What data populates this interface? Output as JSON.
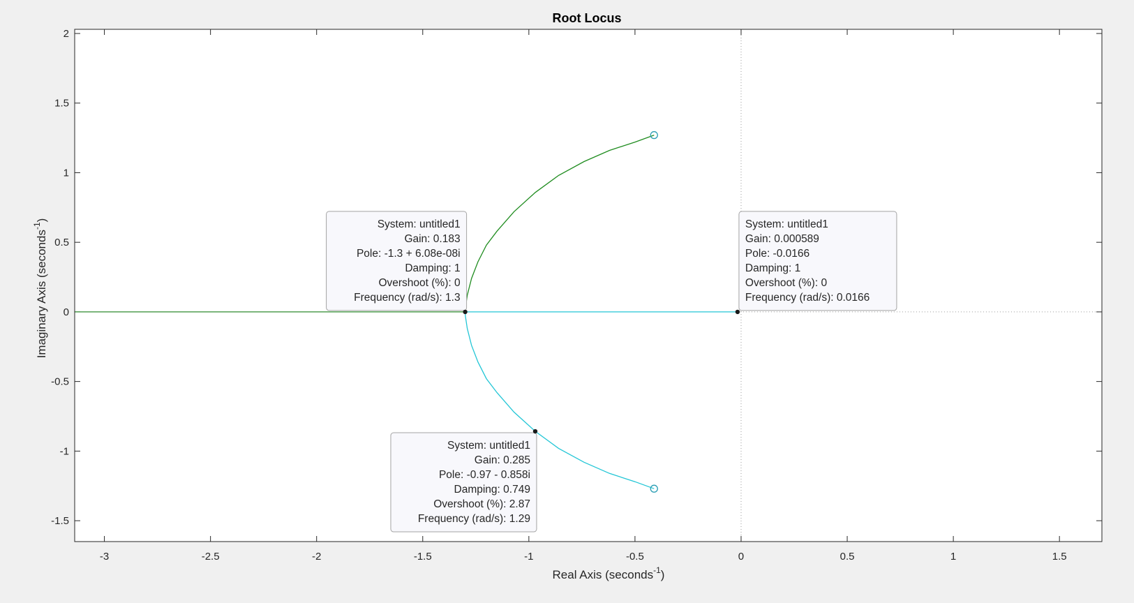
{
  "chart_data": {
    "type": "line",
    "title": "Root Locus",
    "xlabel": {
      "text": "Real Axis (seconds",
      "sup": "-1",
      "close": ")"
    },
    "ylabel": {
      "text": "Imaginary Axis (seconds",
      "sup": "-1",
      "close": ")"
    },
    "xlim": [
      -3.14,
      1.7
    ],
    "ylim": [
      -1.65,
      2.03
    ],
    "xticks": [
      -3,
      -2.5,
      -2,
      -1.5,
      -1,
      -0.5,
      0,
      0.5,
      1,
      1.5
    ],
    "yticks": [
      -1.5,
      -1,
      -0.5,
      0,
      0.5,
      1,
      1.5,
      2
    ],
    "grid": false,
    "colors": {
      "upper_branch": "#1f8c1f",
      "lower_branch": "#23c6d6",
      "zero_marker": "#2a9db3",
      "real_axis_branch": "#2e8b2e"
    },
    "series": [
      {
        "branch": "upper",
        "x": [
          -1.3,
          -1.299,
          -1.29,
          -1.27,
          -1.24,
          -1.2,
          -1.15,
          -1.07,
          -0.97,
          -0.86,
          -0.74,
          -0.62,
          -0.5,
          -0.41
        ],
        "y": [
          0.0,
          0.03,
          0.12,
          0.24,
          0.36,
          0.48,
          0.58,
          0.72,
          0.858,
          0.98,
          1.08,
          1.16,
          1.22,
          1.27
        ]
      },
      {
        "branch": "lower",
        "x": [
          -1.3,
          -1.299,
          -1.29,
          -1.27,
          -1.24,
          -1.2,
          -1.15,
          -1.07,
          -0.97,
          -0.86,
          -0.74,
          -0.62,
          -0.5,
          -0.41
        ],
        "y": [
          0.0,
          -0.03,
          -0.12,
          -0.24,
          -0.36,
          -0.48,
          -0.58,
          -0.72,
          -0.858,
          -0.98,
          -1.08,
          -1.16,
          -1.22,
          -1.27
        ]
      },
      {
        "branch": "real-left",
        "x": [
          -3.14,
          -1.3
        ],
        "y": [
          0,
          0
        ]
      },
      {
        "branch": "real-right",
        "x": [
          -1.3,
          -0.0166
        ],
        "y": [
          0,
          0
        ]
      }
    ],
    "zeros": [
      {
        "x": -0.41,
        "y": 1.27
      },
      {
        "x": -0.41,
        "y": -1.27
      }
    ],
    "datatips": [
      {
        "point": {
          "x": -1.3,
          "y": 0.0
        },
        "align": "right",
        "lines": [
          "System: untitled1",
          "Gain: 0.183",
          "Pole: -1.3 + 6.08e-08i",
          "Damping: 1",
          "Overshoot (%): 0",
          "Frequency (rad/s): 1.3"
        ]
      },
      {
        "point": {
          "x": -0.0166,
          "y": 0.0
        },
        "align": "left",
        "lines": [
          "System: untitled1",
          "Gain: 0.000589",
          "Pole: -0.0166",
          "Damping: 1",
          "Overshoot (%): 0",
          "Frequency (rad/s): 0.0166"
        ]
      },
      {
        "point": {
          "x": -0.97,
          "y": -0.858
        },
        "align": "right",
        "lines": [
          "System: untitled1",
          "Gain: 0.285",
          "Pole: -0.97 - 0.858i",
          "Damping: 0.749",
          "Overshoot (%): 2.87",
          "Frequency (rad/s): 1.29"
        ]
      }
    ]
  }
}
